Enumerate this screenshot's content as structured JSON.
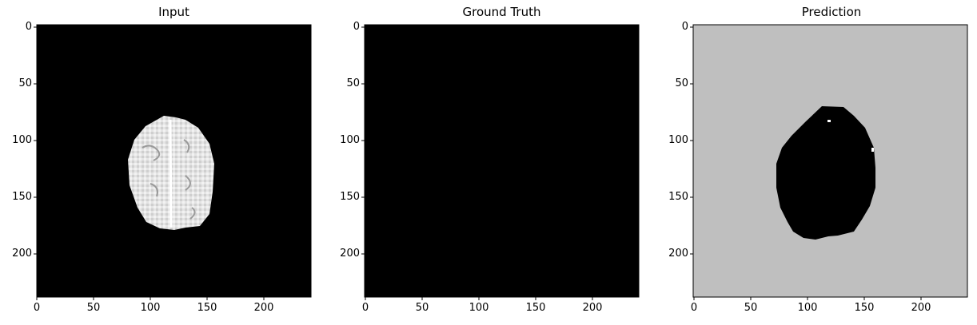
{
  "panels": [
    {
      "id": "input",
      "title": "Input",
      "x_ticks": [
        "0",
        "50",
        "100",
        "150",
        "200"
      ],
      "y_ticks": [
        "0",
        "50",
        "100",
        "150",
        "200"
      ],
      "background": "#000000",
      "content": "brain-slice"
    },
    {
      "id": "ground-truth",
      "title": "Ground Truth",
      "x_ticks": [
        "0",
        "50",
        "100",
        "150",
        "200"
      ],
      "y_ticks": [
        "0",
        "50",
        "100",
        "150",
        "200"
      ],
      "background": "#000000",
      "content": "empty"
    },
    {
      "id": "prediction",
      "title": "Prediction",
      "x_ticks": [
        "0",
        "50",
        "100",
        "150",
        "200"
      ],
      "y_ticks": [
        "0",
        "50",
        "100",
        "150",
        "200"
      ],
      "background": "#bfbfbf",
      "content": "black-blob"
    }
  ],
  "colors": {
    "brain_light": "#e6e6e6",
    "brain_mid": "#c8c8c8",
    "prediction_bg": "#bfbfbf",
    "black": "#000000",
    "white": "#ffffff"
  }
}
